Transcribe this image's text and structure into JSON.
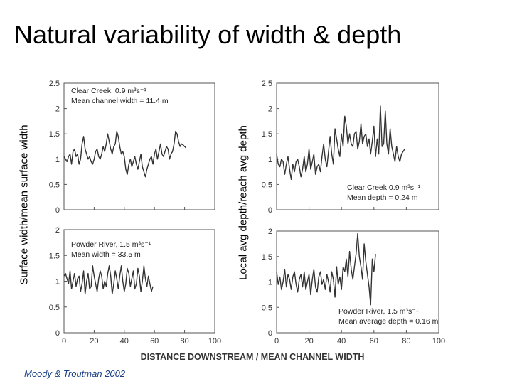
{
  "slide": {
    "title": "Natural variability of width & depth",
    "credit": "Moody & Troutman 2002"
  },
  "chart_data": {
    "type": "line",
    "xlabel": "DISTANCE DOWNSTREAM / MEAN CHANNEL WIDTH",
    "left_ylabel": "Surface width/mean surface width",
    "right_ylabel": "Local avg depth/reach avg depth",
    "xlim": [
      0,
      100
    ],
    "x_ticks": [
      "0",
      "20",
      "40",
      "60",
      "80",
      "100"
    ],
    "panels": [
      {
        "id": "top-left",
        "ylim": [
          0,
          2.5
        ],
        "y_ticks": [
          "0",
          "0.5",
          "1",
          "1.5",
          "2",
          "2.5"
        ],
        "annotation": [
          "Clear Creek, 0.9 m³s⁻¹",
          "Mean channel width = 11.4 m"
        ],
        "series": [
          {
            "x0": 0,
            "dx": 1,
            "values": [
              1.05,
              1.0,
              0.95,
              1.05,
              1.1,
              0.9,
              1.15,
              1.2,
              1.05,
              1.1,
              0.9,
              1.0,
              1.3,
              1.45,
              1.2,
              1.1,
              1.0,
              1.05,
              0.95,
              0.9,
              1.0,
              1.15,
              1.2,
              1.05,
              1.0,
              1.1,
              1.25,
              1.15,
              1.3,
              1.5,
              1.35,
              1.2,
              1.1,
              1.25,
              1.3,
              1.55,
              1.45,
              1.25,
              1.1,
              1.15,
              1.05,
              0.8,
              0.7,
              0.9,
              1.0,
              0.85,
              0.95,
              1.05,
              0.9,
              0.8,
              0.95,
              1.1,
              0.85,
              0.75,
              0.65,
              0.8,
              0.9,
              1.0,
              1.05,
              0.9,
              1.1,
              1.2,
              1.0,
              1.15,
              1.3,
              1.1,
              1.05,
              1.15,
              1.25,
              1.2,
              1.0,
              1.1,
              1.15,
              1.3,
              1.55,
              1.5,
              1.35,
              1.25,
              1.3,
              1.28,
              1.25,
              1.22
            ]
          }
        ]
      },
      {
        "id": "bottom-left",
        "ylim": [
          0,
          2
        ],
        "y_ticks": [
          "0",
          "0.5",
          "1",
          "1.5",
          "2"
        ],
        "annotation": [
          "Powder River, 1.5 m³s⁻¹",
          "Mean width = 33.5 m"
        ],
        "series": [
          {
            "x0": 0,
            "dx": 1,
            "values": [
              1.1,
              1.15,
              1.05,
              0.95,
              1.2,
              0.85,
              1.0,
              1.15,
              0.9,
              1.05,
              1.1,
              0.8,
              0.95,
              1.2,
              0.75,
              1.0,
              1.15,
              0.85,
              0.9,
              1.3,
              1.1,
              0.95,
              0.8,
              1.05,
              1.2,
              1.1,
              0.85,
              1.0,
              0.9,
              1.15,
              1.3,
              1.1,
              0.75,
              0.95,
              1.2,
              1.05,
              0.85,
              1.1,
              1.3,
              1.0,
              0.8,
              0.95,
              1.25,
              1.15,
              0.9,
              1.05,
              1.2,
              0.85,
              0.95,
              1.25,
              1.1,
              0.8,
              1.0,
              1.3,
              1.05,
              0.9,
              1.1,
              0.95,
              0.8,
              0.9
            ]
          }
        ]
      },
      {
        "id": "top-right",
        "ylim": [
          0,
          2.5
        ],
        "y_ticks": [
          "0",
          "0.5",
          "1",
          "1.5",
          "2",
          "2.5"
        ],
        "annotation": [
          "Clear Creek 0.9 m³s⁻¹",
          "Mean depth = 0.24 m"
        ],
        "series": [
          {
            "x0": 0,
            "dx": 1,
            "values": [
              1.1,
              0.9,
              0.85,
              1.0,
              0.95,
              0.7,
              0.9,
              1.05,
              0.8,
              0.6,
              0.9,
              0.75,
              0.95,
              1.0,
              0.85,
              0.65,
              0.8,
              1.05,
              0.75,
              0.9,
              1.2,
              0.8,
              0.95,
              1.1,
              0.7,
              0.85,
              0.9,
              0.75,
              1.05,
              1.3,
              1.0,
              0.85,
              1.15,
              1.45,
              1.1,
              0.9,
              1.6,
              1.4,
              1.2,
              1.05,
              1.5,
              1.25,
              1.85,
              1.65,
              1.3,
              1.5,
              1.3,
              1.25,
              1.5,
              1.55,
              1.2,
              1.35,
              1.7,
              1.3,
              1.45,
              1.5,
              1.25,
              1.4,
              1.1,
              1.35,
              1.65,
              1.05,
              1.4,
              1.1,
              2.05,
              1.25,
              1.3,
              1.95,
              1.3,
              1.1,
              1.6,
              1.25,
              1.1,
              0.95,
              1.25,
              1.05,
              0.95,
              1.1,
              1.15,
              1.2
            ]
          }
        ]
      },
      {
        "id": "bottom-right",
        "ylim": [
          0,
          2
        ],
        "y_ticks": [
          "0",
          "0.5",
          "1",
          "1.5",
          "2"
        ],
        "annotation": [
          "Powder River, 1.5 m³s⁻¹",
          "Mean average depth = 0.16 m"
        ],
        "series": [
          {
            "x0": 0,
            "dx": 1,
            "values": [
              1.2,
              0.95,
              1.1,
              0.85,
              1.0,
              1.25,
              0.9,
              1.15,
              1.05,
              0.85,
              1.1,
              1.2,
              0.95,
              0.8,
              1.05,
              1.15,
              0.9,
              1.2,
              0.85,
              1.0,
              1.15,
              0.75,
              1.05,
              1.25,
              0.9,
              0.8,
              1.1,
              1.2,
              0.95,
              1.05,
              0.85,
              1.15,
              1.0,
              0.8,
              1.2,
              1.05,
              0.7,
              1.3,
              0.95,
              1.1,
              0.85,
              1.3,
              1.2,
              1.45,
              1.1,
              1.6,
              1.25,
              1.05,
              1.3,
              1.55,
              1.95,
              1.5,
              1.3,
              1.05,
              1.75,
              1.4,
              1.15,
              0.9,
              0.55,
              1.45,
              1.2,
              1.55
            ]
          }
        ]
      }
    ]
  }
}
